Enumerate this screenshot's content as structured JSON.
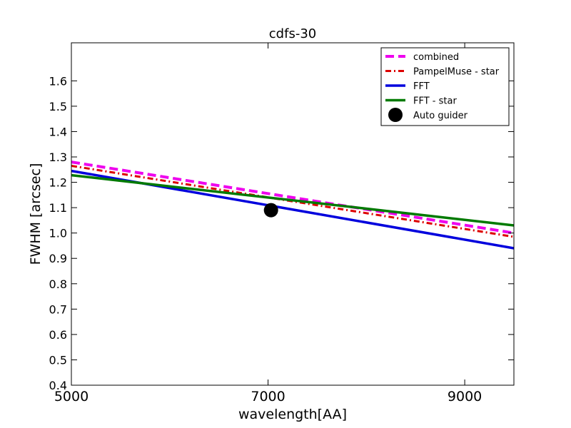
{
  "chart_data": {
    "type": "line",
    "title": "cdfs-30",
    "xlabel": "wavelength[AA]",
    "ylabel": "FWHM [arcsec]",
    "xlim": [
      5000,
      9500
    ],
    "ylim": [
      0.4,
      1.75
    ],
    "x_ticks": [
      5000,
      7000,
      9000
    ],
    "x_tick_labels": [
      "5000",
      "7000",
      "9000"
    ],
    "y_ticks": [
      0.4,
      0.5,
      0.6,
      0.7,
      0.8,
      0.9,
      1.0,
      1.1,
      1.2,
      1.3,
      1.4,
      1.5,
      1.6
    ],
    "y_tick_labels": [
      "0.4",
      "0.5",
      "0.6",
      "0.7",
      "0.8",
      "0.9",
      "1.0",
      "1.1",
      "1.2",
      "1.3",
      "1.4",
      "1.5",
      "1.6"
    ],
    "grid": false,
    "legend_position": "top-right",
    "series": [
      {
        "name": "combined",
        "color": "#ee00ee",
        "style": "dashed",
        "x": [
          5000,
          9500
        ],
        "y": [
          1.28,
          1.0
        ]
      },
      {
        "name": "PampelMuse - star",
        "color": "#dd0000",
        "style": "dashdot",
        "x": [
          5000,
          9500
        ],
        "y": [
          1.265,
          0.985
        ]
      },
      {
        "name": "FFT",
        "color": "#0000dd",
        "style": "solid",
        "x": [
          5000,
          9500
        ],
        "y": [
          1.245,
          0.94
        ]
      },
      {
        "name": "FFT - star",
        "color": "#007a00",
        "style": "solid",
        "x": [
          5000,
          9500
        ],
        "y": [
          1.228,
          1.03
        ]
      },
      {
        "name": "Auto guider",
        "color": "#000000",
        "style": "marker",
        "x": [
          7030
        ],
        "y": [
          1.09
        ]
      }
    ]
  }
}
